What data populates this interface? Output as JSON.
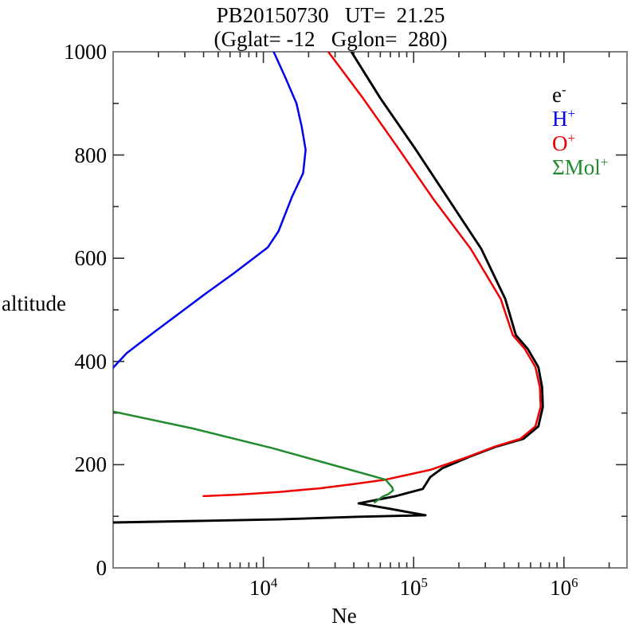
{
  "figure": {
    "background": "#ffffff"
  },
  "title": {
    "line1": "PB20150730   UT=  21.25",
    "line2": "(Gglat= -12   Gglon=  280)"
  },
  "axes": {
    "x": {
      "label": "Ne",
      "scale": "log10",
      "log_min": 3,
      "log_max": 6.42,
      "decade_exponents_labeled": [
        4,
        5,
        6
      ],
      "tick_base": "10"
    },
    "y": {
      "label": "altitude",
      "min": 0,
      "max": 1000,
      "major_step": 200,
      "minor_step": 100,
      "tick_labels": [
        "0",
        "200",
        "400",
        "600",
        "800",
        "1000"
      ]
    }
  },
  "legend": {
    "items": [
      {
        "base": "e",
        "sup": "-",
        "color": "#000000"
      },
      {
        "base": "H",
        "sup": "+",
        "color": "#0000ee"
      },
      {
        "base": "O",
        "sup": "+",
        "color": "#ee0000"
      },
      {
        "base": "ΣMol",
        "sup": "+",
        "color": "#228b2e"
      }
    ]
  },
  "colors": {
    "frame": "#808080",
    "tick": "#303030",
    "text": "#000000"
  },
  "chart_data": {
    "type": "line",
    "title": "PB20150730 UT= 21.25",
    "subtitle": "(Gglat= -12 Gglon= 280)",
    "xlabel": "Ne",
    "ylabel": "altitude",
    "x_scale": "log10",
    "x_range": [
      1000,
      2630000
    ],
    "y_range": [
      0,
      1000
    ],
    "grid": false,
    "legend_position": "upper-right-inside",
    "series": [
      {
        "name": "e-",
        "color": "#000000",
        "points_alt_km_vs_ne_cm3": [
          [
            1000,
            38500
          ],
          [
            910,
            60000
          ],
          [
            813,
            102000
          ],
          [
            715,
            170000
          ],
          [
            618,
            282000
          ],
          [
            521,
            407000
          ],
          [
            451,
            479000
          ],
          [
            424,
            575000
          ],
          [
            389,
            676000
          ],
          [
            350,
            716000
          ],
          [
            312,
            724000
          ],
          [
            274,
            676000
          ],
          [
            250,
            537000
          ],
          [
            235,
            355000
          ],
          [
            215,
            234000
          ],
          [
            193,
            155000
          ],
          [
            176,
            129000
          ],
          [
            153,
            115000
          ],
          [
            139,
            76000
          ],
          [
            125,
            43000
          ],
          [
            116,
            65000
          ],
          [
            102,
            120000
          ],
          [
            99,
            43000
          ],
          [
            94,
            12600
          ],
          [
            91,
            3700
          ],
          [
            88,
            1000
          ]
        ]
      },
      {
        "name": "H+",
        "color": "#0000ee",
        "points_alt_km_vs_ne_cm3": [
          [
            1000,
            11700
          ],
          [
            950,
            14000
          ],
          [
            900,
            16600
          ],
          [
            855,
            18000
          ],
          [
            810,
            19100
          ],
          [
            765,
            18400
          ],
          [
            719,
            15500
          ],
          [
            652,
            12600
          ],
          [
            621,
            10700
          ],
          [
            570,
            6300
          ],
          [
            533,
            4200
          ],
          [
            493,
            2750
          ],
          [
            456,
            1860
          ],
          [
            416,
            1230
          ],
          [
            388,
            1000
          ]
        ]
      },
      {
        "name": "O+",
        "color": "#ee0000",
        "points_alt_km_vs_ne_cm3": [
          [
            1000,
            27000
          ],
          [
            910,
            46000
          ],
          [
            813,
            79000
          ],
          [
            715,
            135000
          ],
          [
            618,
            240000
          ],
          [
            521,
            380000
          ],
          [
            451,
            457000
          ],
          [
            424,
            550000
          ],
          [
            389,
            646000
          ],
          [
            350,
            692000
          ],
          [
            312,
            700000
          ],
          [
            274,
            646000
          ],
          [
            250,
            513000
          ],
          [
            235,
            347000
          ],
          [
            215,
            229000
          ],
          [
            190,
            129000
          ],
          [
            171,
            65000
          ],
          [
            162,
            39000
          ],
          [
            154,
            23400
          ],
          [
            147,
            12600
          ],
          [
            142,
            6800
          ],
          [
            139,
            4000
          ]
        ]
      },
      {
        "name": "SigmaMol+",
        "color": "#228b2e",
        "points_alt_km_vs_ne_cm3": [
          [
            303,
            1000
          ],
          [
            270,
            3400
          ],
          [
            232,
            11500
          ],
          [
            189,
            39000
          ],
          [
            171,
            65000
          ],
          [
            156,
            72000
          ],
          [
            150,
            73000
          ],
          [
            143,
            68000
          ],
          [
            138,
            62000
          ],
          [
            127,
            55000
          ]
        ]
      }
    ]
  }
}
